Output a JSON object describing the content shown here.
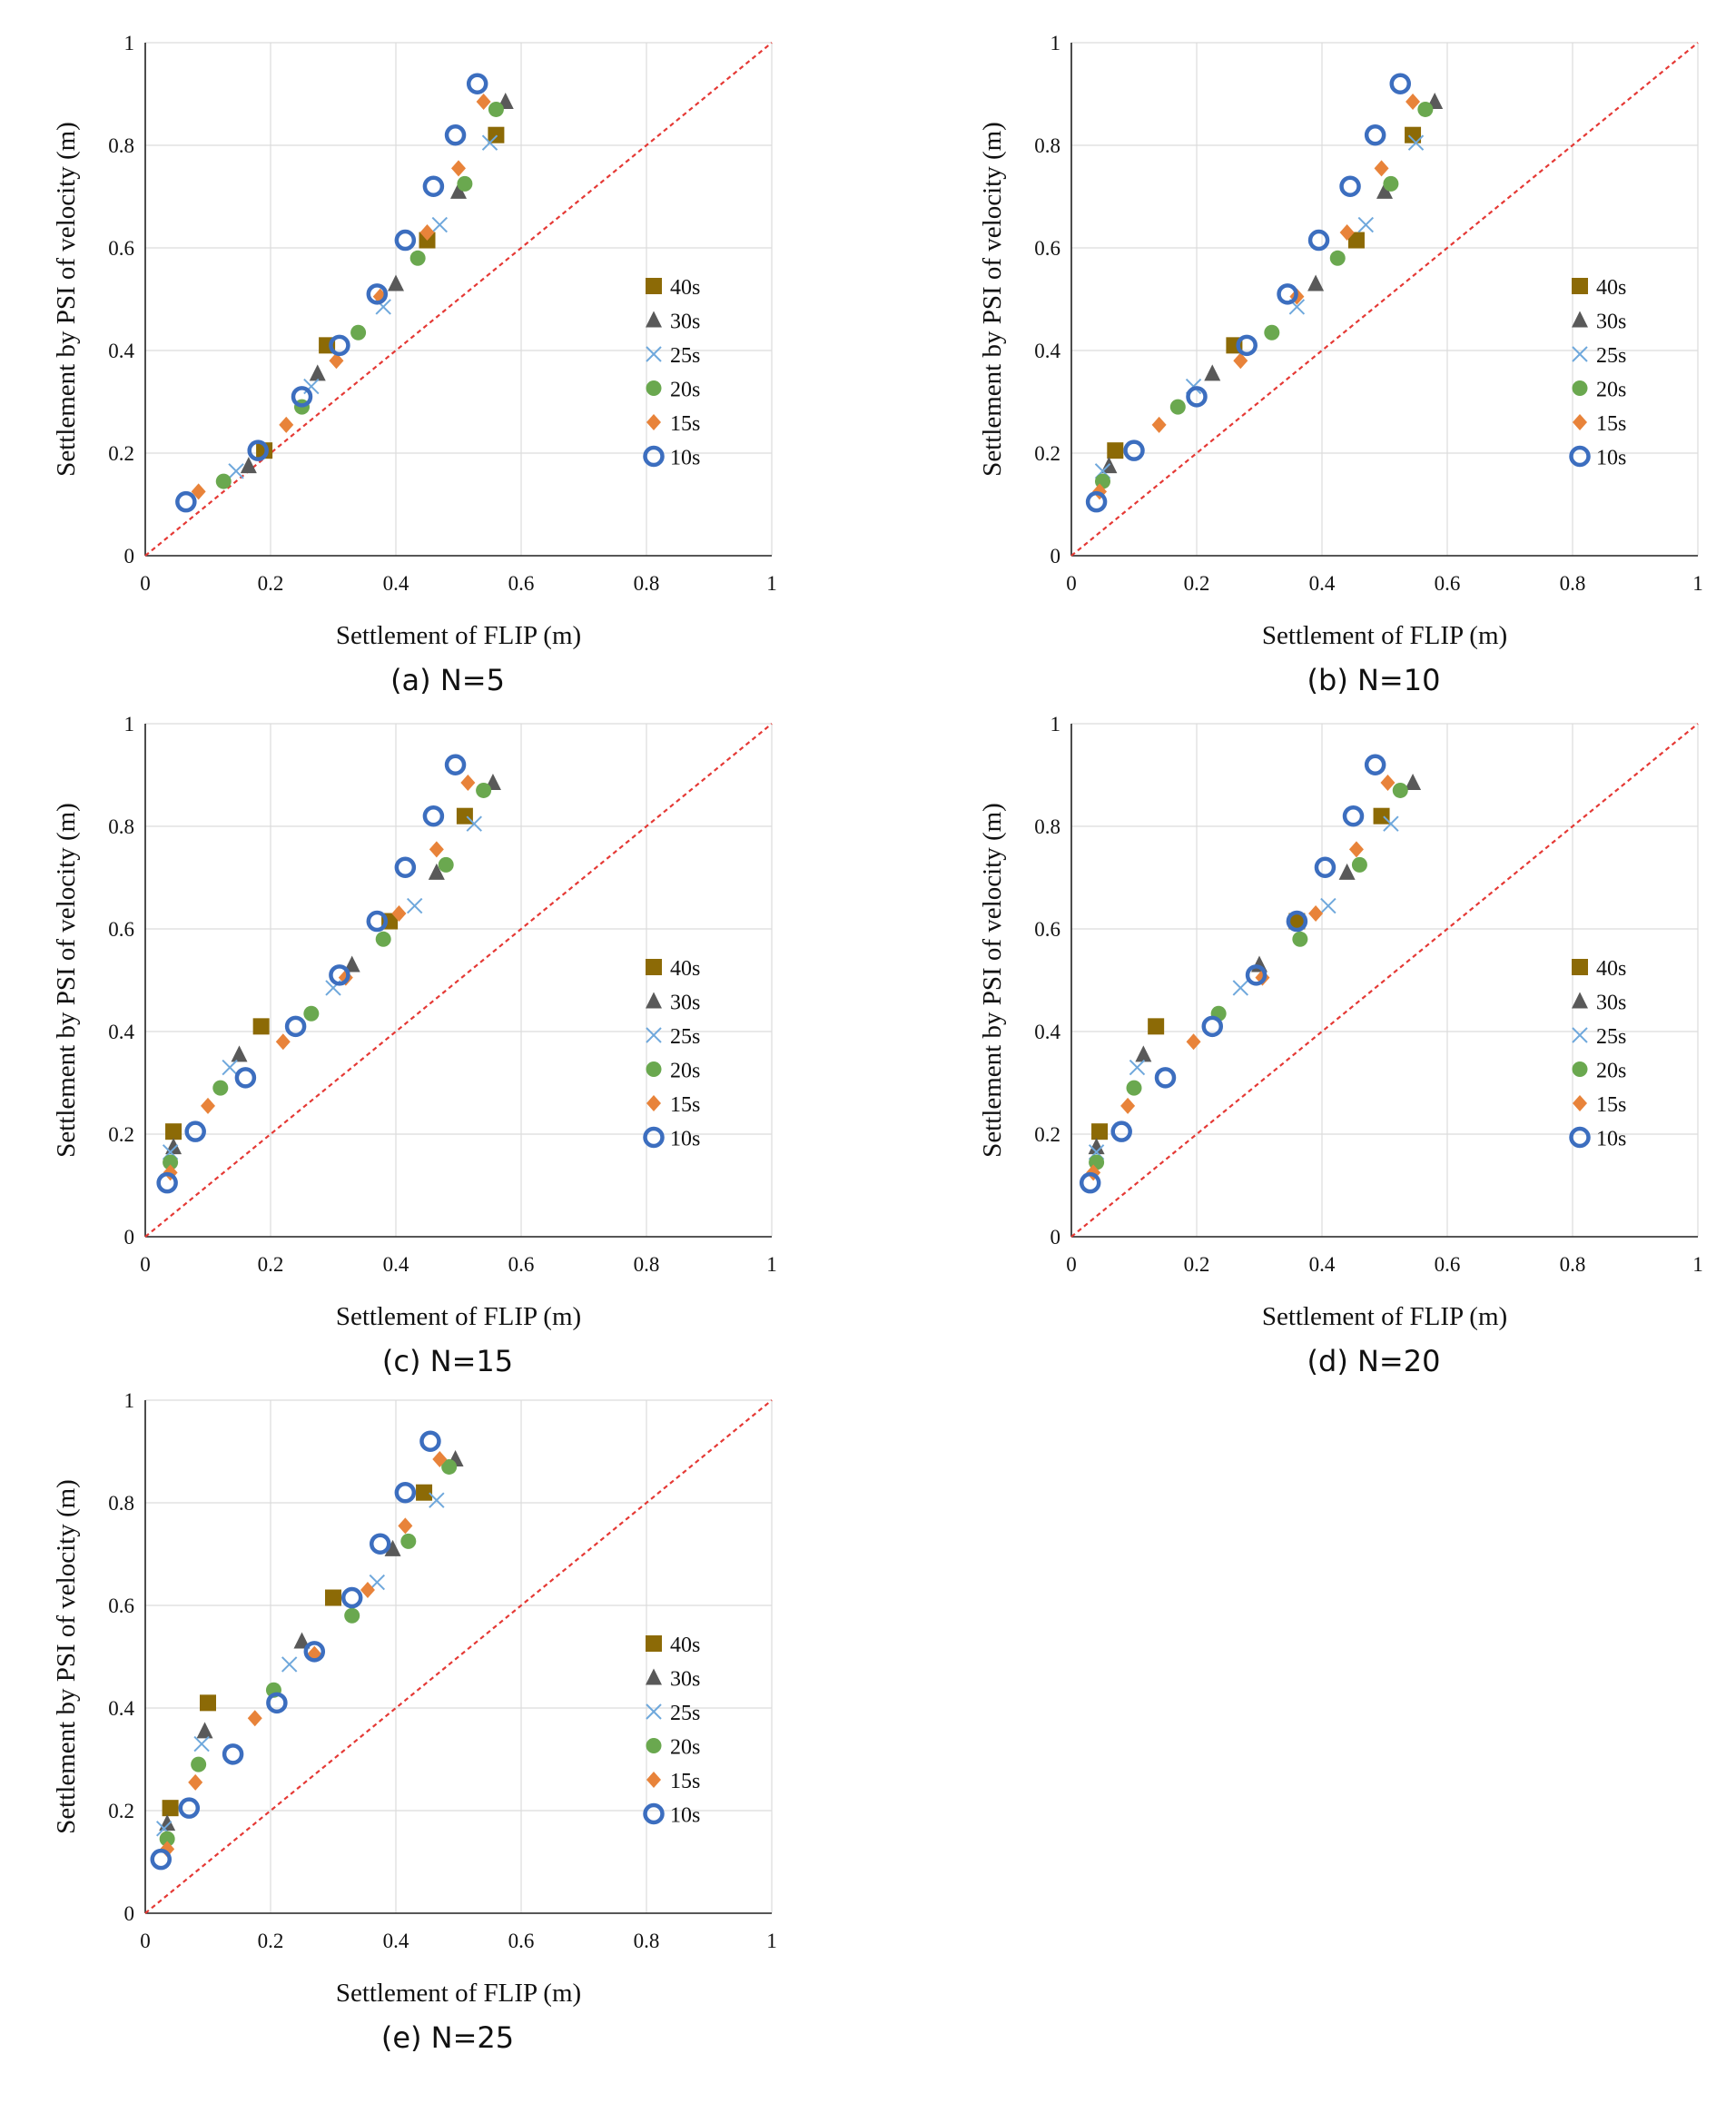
{
  "chart_data": [
    {
      "type": "scatter",
      "caption": "(a)  N=5",
      "xlabel": "Settlement of FLIP (m)",
      "ylabel": "Settlement by PSI of velocity (m)",
      "xlim": [
        0,
        1
      ],
      "ylim": [
        0,
        1
      ],
      "xticks": [
        "0",
        "0.2",
        "0.4",
        "0.6",
        "0.8",
        "1"
      ],
      "yticks": [
        "0",
        "0.2",
        "0.4",
        "0.6",
        "0.8",
        "1"
      ],
      "grid": true,
      "legend": "right",
      "reference_line": {
        "x": [
          0,
          1
        ],
        "y": [
          0,
          1
        ],
        "color": "#e53935",
        "style": "dashed"
      },
      "series": [
        {
          "name": "40s",
          "marker": "square",
          "color": "#8c6a06",
          "x": [
            0.19,
            0.29,
            0.45,
            0.56
          ],
          "y": [
            0.205,
            0.41,
            0.615,
            0.82
          ]
        },
        {
          "name": "30s",
          "marker": "triangle",
          "color": "#595959",
          "x": [
            0.165,
            0.275,
            0.4,
            0.5,
            0.575
          ],
          "y": [
            0.175,
            0.355,
            0.53,
            0.71,
            0.885
          ]
        },
        {
          "name": "25s",
          "marker": "x",
          "color": "#6fa8dc",
          "x": [
            0.145,
            0.265,
            0.38,
            0.47,
            0.55
          ],
          "y": [
            0.165,
            0.33,
            0.485,
            0.645,
            0.805
          ]
        },
        {
          "name": "20s",
          "marker": "circle",
          "color": "#6aa84f",
          "x": [
            0.125,
            0.25,
            0.34,
            0.435,
            0.51,
            0.56
          ],
          "y": [
            0.145,
            0.29,
            0.435,
            0.58,
            0.725,
            0.87
          ]
        },
        {
          "name": "15s",
          "marker": "diamond",
          "color": "#e8833a",
          "x": [
            0.085,
            0.225,
            0.305,
            0.375,
            0.45,
            0.5,
            0.54
          ],
          "y": [
            0.125,
            0.255,
            0.38,
            0.505,
            0.63,
            0.755,
            0.885
          ]
        },
        {
          "name": "10s",
          "marker": "ring",
          "color": "#3c6ebf",
          "x": [
            0.065,
            0.18,
            0.25,
            0.31,
            0.37,
            0.415,
            0.46,
            0.495,
            0.53
          ],
          "y": [
            0.105,
            0.205,
            0.31,
            0.41,
            0.51,
            0.615,
            0.72,
            0.82,
            0.92
          ]
        }
      ]
    },
    {
      "type": "scatter",
      "caption": "(b)  N=10",
      "xlabel": "Settlement of FLIP (m)",
      "ylabel": "Settlement by PSI of velocity (m)",
      "xlim": [
        0,
        1
      ],
      "ylim": [
        0,
        1
      ],
      "xticks": [
        "0",
        "0.2",
        "0.4",
        "0.6",
        "0.8",
        "1"
      ],
      "yticks": [
        "0",
        "0.2",
        "0.4",
        "0.6",
        "0.8",
        "1"
      ],
      "grid": true,
      "legend": "right",
      "reference_line": {
        "x": [
          0,
          1
        ],
        "y": [
          0,
          1
        ],
        "color": "#e53935",
        "style": "dashed"
      },
      "series": [
        {
          "name": "40s",
          "marker": "square",
          "color": "#8c6a06",
          "x": [
            0.07,
            0.26,
            0.455,
            0.545
          ],
          "y": [
            0.205,
            0.41,
            0.615,
            0.82
          ]
        },
        {
          "name": "30s",
          "marker": "triangle",
          "color": "#595959",
          "x": [
            0.06,
            0.225,
            0.39,
            0.5,
            0.58
          ],
          "y": [
            0.175,
            0.355,
            0.53,
            0.71,
            0.885
          ]
        },
        {
          "name": "25s",
          "marker": "x",
          "color": "#6fa8dc",
          "x": [
            0.05,
            0.195,
            0.36,
            0.47,
            0.55
          ],
          "y": [
            0.165,
            0.33,
            0.485,
            0.645,
            0.805
          ]
        },
        {
          "name": "20s",
          "marker": "circle",
          "color": "#6aa84f",
          "x": [
            0.05,
            0.17,
            0.32,
            0.425,
            0.51,
            0.565
          ],
          "y": [
            0.145,
            0.29,
            0.435,
            0.58,
            0.725,
            0.87
          ]
        },
        {
          "name": "15s",
          "marker": "diamond",
          "color": "#e8833a",
          "x": [
            0.045,
            0.14,
            0.27,
            0.36,
            0.44,
            0.495,
            0.545
          ],
          "y": [
            0.125,
            0.255,
            0.38,
            0.505,
            0.63,
            0.755,
            0.885
          ]
        },
        {
          "name": "10s",
          "marker": "ring",
          "color": "#3c6ebf",
          "x": [
            0.04,
            0.1,
            0.2,
            0.28,
            0.345,
            0.395,
            0.445,
            0.485,
            0.525
          ],
          "y": [
            0.105,
            0.205,
            0.31,
            0.41,
            0.51,
            0.615,
            0.72,
            0.82,
            0.92
          ]
        }
      ]
    },
    {
      "type": "scatter",
      "caption": "(c)  N=15",
      "xlabel": "Settlement of FLIP (m)",
      "ylabel": "Settlement by PSI of velocity (m)",
      "xlim": [
        0,
        1
      ],
      "ylim": [
        0,
        1
      ],
      "xticks": [
        "0",
        "0.2",
        "0.4",
        "0.6",
        "0.8",
        "1"
      ],
      "yticks": [
        "0",
        "0.2",
        "0.4",
        "0.6",
        "0.8",
        "1"
      ],
      "grid": true,
      "legend": "right",
      "reference_line": {
        "x": [
          0,
          1
        ],
        "y": [
          0,
          1
        ],
        "color": "#e53935",
        "style": "dashed"
      },
      "series": [
        {
          "name": "40s",
          "marker": "square",
          "color": "#8c6a06",
          "x": [
            0.045,
            0.185,
            0.39,
            0.51
          ],
          "y": [
            0.205,
            0.41,
            0.615,
            0.82
          ]
        },
        {
          "name": "30s",
          "marker": "triangle",
          "color": "#595959",
          "x": [
            0.045,
            0.15,
            0.33,
            0.465,
            0.555
          ],
          "y": [
            0.175,
            0.355,
            0.53,
            0.71,
            0.885
          ]
        },
        {
          "name": "25s",
          "marker": "x",
          "color": "#6fa8dc",
          "x": [
            0.04,
            0.135,
            0.3,
            0.43,
            0.525
          ],
          "y": [
            0.165,
            0.33,
            0.485,
            0.645,
            0.805
          ]
        },
        {
          "name": "20s",
          "marker": "circle",
          "color": "#6aa84f",
          "x": [
            0.04,
            0.12,
            0.265,
            0.38,
            0.48,
            0.54
          ],
          "y": [
            0.145,
            0.29,
            0.435,
            0.58,
            0.725,
            0.87
          ]
        },
        {
          "name": "15s",
          "marker": "diamond",
          "color": "#e8833a",
          "x": [
            0.04,
            0.1,
            0.22,
            0.32,
            0.405,
            0.465,
            0.515
          ],
          "y": [
            0.125,
            0.255,
            0.38,
            0.505,
            0.63,
            0.755,
            0.885
          ]
        },
        {
          "name": "10s",
          "marker": "ring",
          "color": "#3c6ebf",
          "x": [
            0.035,
            0.08,
            0.16,
            0.24,
            0.31,
            0.37,
            0.415,
            0.46,
            0.495
          ],
          "y": [
            0.105,
            0.205,
            0.31,
            0.41,
            0.51,
            0.615,
            0.72,
            0.82,
            0.92
          ]
        }
      ]
    },
    {
      "type": "scatter",
      "caption": "(d)  N=20",
      "xlabel": "Settlement of FLIP (m)",
      "ylabel": "Settlement by PSI of velocity (m)",
      "xlim": [
        0,
        1
      ],
      "ylim": [
        0,
        1
      ],
      "xticks": [
        "0",
        "0.2",
        "0.4",
        "0.6",
        "0.8",
        "1"
      ],
      "yticks": [
        "0",
        "0.2",
        "0.4",
        "0.6",
        "0.8",
        "1"
      ],
      "grid": true,
      "legend": "right",
      "reference_line": {
        "x": [
          0,
          1
        ],
        "y": [
          0,
          1
        ],
        "color": "#e53935",
        "style": "dashed"
      },
      "series": [
        {
          "name": "40s",
          "marker": "square",
          "color": "#8c6a06",
          "x": [
            0.045,
            0.135,
            0.36,
            0.495
          ],
          "y": [
            0.205,
            0.41,
            0.615,
            0.82
          ]
        },
        {
          "name": "30s",
          "marker": "triangle",
          "color": "#595959",
          "x": [
            0.04,
            0.115,
            0.3,
            0.44,
            0.545
          ],
          "y": [
            0.175,
            0.355,
            0.53,
            0.71,
            0.885
          ]
        },
        {
          "name": "25s",
          "marker": "x",
          "color": "#6fa8dc",
          "x": [
            0.04,
            0.105,
            0.27,
            0.41,
            0.51
          ],
          "y": [
            0.165,
            0.33,
            0.485,
            0.645,
            0.805
          ]
        },
        {
          "name": "20s",
          "marker": "circle",
          "color": "#6aa84f",
          "x": [
            0.04,
            0.1,
            0.235,
            0.365,
            0.46,
            0.525
          ],
          "y": [
            0.145,
            0.29,
            0.435,
            0.58,
            0.725,
            0.87
          ]
        },
        {
          "name": "15s",
          "marker": "diamond",
          "color": "#e8833a",
          "x": [
            0.035,
            0.09,
            0.195,
            0.305,
            0.39,
            0.455,
            0.505
          ],
          "y": [
            0.125,
            0.255,
            0.38,
            0.505,
            0.63,
            0.755,
            0.885
          ]
        },
        {
          "name": "10s",
          "marker": "ring",
          "color": "#3c6ebf",
          "x": [
            0.03,
            0.08,
            0.15,
            0.225,
            0.295,
            0.36,
            0.405,
            0.45,
            0.485
          ],
          "y": [
            0.105,
            0.205,
            0.31,
            0.41,
            0.51,
            0.615,
            0.72,
            0.82,
            0.92
          ]
        }
      ]
    },
    {
      "type": "scatter",
      "caption": "(e)  N=25",
      "xlabel": "Settlement of FLIP (m)",
      "ylabel": "Settlement by PSI of velocity (m)",
      "xlim": [
        0,
        1
      ],
      "ylim": [
        0,
        1
      ],
      "xticks": [
        "0",
        "0.2",
        "0.4",
        "0.6",
        "0.8",
        "1"
      ],
      "yticks": [
        "0",
        "0.2",
        "0.4",
        "0.6",
        "0.8",
        "1"
      ],
      "grid": true,
      "legend": "right",
      "reference_line": {
        "x": [
          0,
          1
        ],
        "y": [
          0,
          1
        ],
        "color": "#e53935",
        "style": "dashed"
      },
      "series": [
        {
          "name": "40s",
          "marker": "square",
          "color": "#8c6a06",
          "x": [
            0.04,
            0.1,
            0.3,
            0.445
          ],
          "y": [
            0.205,
            0.41,
            0.615,
            0.82
          ]
        },
        {
          "name": "30s",
          "marker": "triangle",
          "color": "#595959",
          "x": [
            0.035,
            0.095,
            0.25,
            0.395,
            0.495
          ],
          "y": [
            0.175,
            0.355,
            0.53,
            0.71,
            0.885
          ]
        },
        {
          "name": "25s",
          "marker": "x",
          "color": "#6fa8dc",
          "x": [
            0.03,
            0.09,
            0.23,
            0.37,
            0.465
          ],
          "y": [
            0.165,
            0.33,
            0.485,
            0.645,
            0.805
          ]
        },
        {
          "name": "20s",
          "marker": "circle",
          "color": "#6aa84f",
          "x": [
            0.035,
            0.085,
            0.205,
            0.33,
            0.42,
            0.485
          ],
          "y": [
            0.145,
            0.29,
            0.435,
            0.58,
            0.725,
            0.87
          ]
        },
        {
          "name": "15s",
          "marker": "diamond",
          "color": "#e8833a",
          "x": [
            0.035,
            0.08,
            0.175,
            0.27,
            0.355,
            0.415,
            0.47
          ],
          "y": [
            0.125,
            0.255,
            0.38,
            0.505,
            0.63,
            0.755,
            0.885
          ]
        },
        {
          "name": "10s",
          "marker": "ring",
          "color": "#3c6ebf",
          "x": [
            0.025,
            0.07,
            0.14,
            0.21,
            0.27,
            0.33,
            0.375,
            0.415,
            0.455
          ],
          "y": [
            0.105,
            0.205,
            0.31,
            0.41,
            0.51,
            0.615,
            0.72,
            0.82,
            0.92
          ]
        }
      ]
    }
  ]
}
